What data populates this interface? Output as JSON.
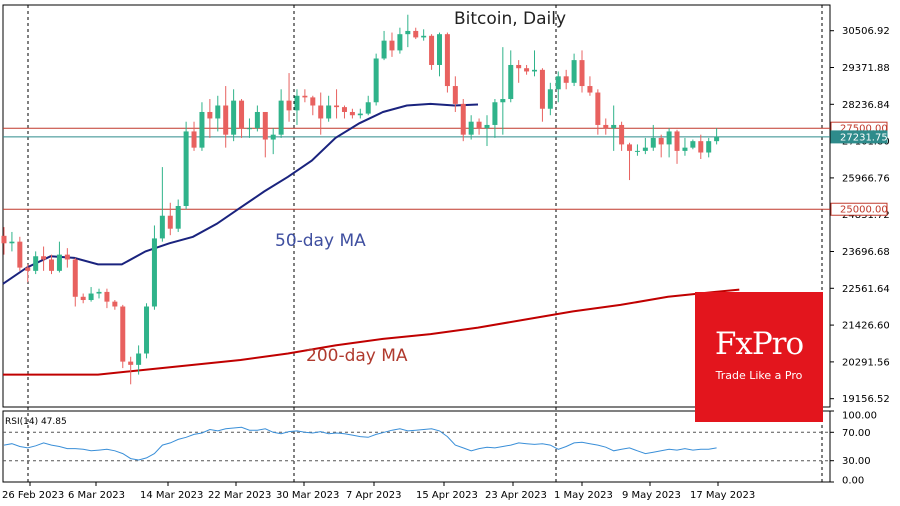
{
  "chart_data": [
    {
      "type": "candlestick",
      "title": "Bitcoin, Daily",
      "ylim": [
        18900,
        31300
      ],
      "yticks": [
        "30506.92",
        "29371.88",
        "28236.84",
        "27101.80",
        "25966.76",
        "24831.72",
        "23696.68",
        "22561.64",
        "21426.60",
        "20291.56",
        "19156.52"
      ],
      "horizontal_levels": [
        {
          "value": 27500,
          "label": "27500.00",
          "color": "#c0392b"
        },
        {
          "value": 25000,
          "label": "25000.00",
          "color": "#c0392b"
        },
        {
          "value": 27231.75,
          "label": "27231.75",
          "color": "#2e8b8b"
        }
      ],
      "x_labels": [
        "26 Feb 2023",
        "6 Mar 2023",
        "14 Mar 2023",
        "22 Mar 2023",
        "30 Mar 2023",
        "7 Apr 2023",
        "15 Apr 2023",
        "23 Apr 2023",
        "1 May 2023",
        "9 May 2023",
        "17 May 2023"
      ],
      "candles": [
        {
          "date": "2023-02-22",
          "o": 24180,
          "h": 24450,
          "l": 23600,
          "c": 23950
        },
        {
          "date": "2023-02-23",
          "o": 23950,
          "h": 24300,
          "l": 23700,
          "c": 24000
        },
        {
          "date": "2023-02-24",
          "o": 24000,
          "h": 24150,
          "l": 23100,
          "c": 23200
        },
        {
          "date": "2023-02-25",
          "o": 23200,
          "h": 23300,
          "l": 22750,
          "c": 23100
        },
        {
          "date": "2023-02-26",
          "o": 23100,
          "h": 23700,
          "l": 23000,
          "c": 23550
        },
        {
          "date": "2023-02-27",
          "o": 23550,
          "h": 23850,
          "l": 23100,
          "c": 23450
        },
        {
          "date": "2023-02-28",
          "o": 23450,
          "h": 23600,
          "l": 23000,
          "c": 23100
        },
        {
          "date": "2023-03-01",
          "o": 23100,
          "h": 24000,
          "l": 23050,
          "c": 23600
        },
        {
          "date": "2023-03-02",
          "o": 23600,
          "h": 23800,
          "l": 23200,
          "c": 23450
        },
        {
          "date": "2023-03-03",
          "o": 23450,
          "h": 23500,
          "l": 22000,
          "c": 22300
        },
        {
          "date": "2023-03-04",
          "o": 22300,
          "h": 22400,
          "l": 22100,
          "c": 22200
        },
        {
          "date": "2023-03-05",
          "o": 22200,
          "h": 22600,
          "l": 22150,
          "c": 22400
        },
        {
          "date": "2023-03-06",
          "o": 22400,
          "h": 22550,
          "l": 22250,
          "c": 22450
        },
        {
          "date": "2023-03-07",
          "o": 22450,
          "h": 22550,
          "l": 21950,
          "c": 22150
        },
        {
          "date": "2023-03-08",
          "o": 22150,
          "h": 22200,
          "l": 21900,
          "c": 22000
        },
        {
          "date": "2023-03-09",
          "o": 22000,
          "h": 22050,
          "l": 20100,
          "c": 20300
        },
        {
          "date": "2023-03-10",
          "o": 20300,
          "h": 20450,
          "l": 19600,
          "c": 20200
        },
        {
          "date": "2023-03-11",
          "o": 20200,
          "h": 20800,
          "l": 19900,
          "c": 20550
        },
        {
          "date": "2023-03-12",
          "o": 20550,
          "h": 22100,
          "l": 20400,
          "c": 22000
        },
        {
          "date": "2023-03-13",
          "o": 22000,
          "h": 24500,
          "l": 21900,
          "c": 24100
        },
        {
          "date": "2023-03-14",
          "o": 24100,
          "h": 26300,
          "l": 24000,
          "c": 24800
        },
        {
          "date": "2023-03-15",
          "o": 24800,
          "h": 25200,
          "l": 24200,
          "c": 24400
        },
        {
          "date": "2023-03-16",
          "o": 24400,
          "h": 25300,
          "l": 24300,
          "c": 25100
        },
        {
          "date": "2023-03-17",
          "o": 25100,
          "h": 27700,
          "l": 25000,
          "c": 27400
        },
        {
          "date": "2023-03-18",
          "o": 27400,
          "h": 27700,
          "l": 26800,
          "c": 26900
        },
        {
          "date": "2023-03-19",
          "o": 26900,
          "h": 28300,
          "l": 26800,
          "c": 28000
        },
        {
          "date": "2023-03-20",
          "o": 28000,
          "h": 28400,
          "l": 27200,
          "c": 27800
        },
        {
          "date": "2023-03-21",
          "o": 27800,
          "h": 28500,
          "l": 27400,
          "c": 28200
        },
        {
          "date": "2023-03-22",
          "o": 28200,
          "h": 28800,
          "l": 26900,
          "c": 27300
        },
        {
          "date": "2023-03-23",
          "o": 27300,
          "h": 28700,
          "l": 27100,
          "c": 28350
        },
        {
          "date": "2023-03-24",
          "o": 28350,
          "h": 28400,
          "l": 27200,
          "c": 27500
        },
        {
          "date": "2023-03-25",
          "o": 27500,
          "h": 27800,
          "l": 27200,
          "c": 27500
        },
        {
          "date": "2023-03-26",
          "o": 27500,
          "h": 28200,
          "l": 27400,
          "c": 28000
        },
        {
          "date": "2023-03-27",
          "o": 28000,
          "h": 28000,
          "l": 26600,
          "c": 27150
        },
        {
          "date": "2023-03-28",
          "o": 27150,
          "h": 27500,
          "l": 26700,
          "c": 27300
        },
        {
          "date": "2023-03-29",
          "o": 27300,
          "h": 28700,
          "l": 27200,
          "c": 28350
        },
        {
          "date": "2023-03-30",
          "o": 28350,
          "h": 29200,
          "l": 27700,
          "c": 28050
        },
        {
          "date": "2023-03-31",
          "o": 28050,
          "h": 28700,
          "l": 27600,
          "c": 28500
        },
        {
          "date": "2023-04-01",
          "o": 28500,
          "h": 28700,
          "l": 28300,
          "c": 28450
        },
        {
          "date": "2023-04-02",
          "o": 28450,
          "h": 28500,
          "l": 27900,
          "c": 28200
        },
        {
          "date": "2023-04-03",
          "o": 28200,
          "h": 28600,
          "l": 27300,
          "c": 27800
        },
        {
          "date": "2023-04-04",
          "o": 27800,
          "h": 28500,
          "l": 27700,
          "c": 28200
        },
        {
          "date": "2023-04-05",
          "o": 28200,
          "h": 28700,
          "l": 27800,
          "c": 28150
        },
        {
          "date": "2023-04-06",
          "o": 28150,
          "h": 28200,
          "l": 27800,
          "c": 28000
        },
        {
          "date": "2023-04-07",
          "o": 28000,
          "h": 28100,
          "l": 27800,
          "c": 27900
        },
        {
          "date": "2023-04-08",
          "o": 27900,
          "h": 28100,
          "l": 27800,
          "c": 27950
        },
        {
          "date": "2023-04-09",
          "o": 27950,
          "h": 28500,
          "l": 27900,
          "c": 28300
        },
        {
          "date": "2023-04-10",
          "o": 28300,
          "h": 29800,
          "l": 28200,
          "c": 29650
        },
        {
          "date": "2023-04-11",
          "o": 29650,
          "h": 30500,
          "l": 29600,
          "c": 30200
        },
        {
          "date": "2023-04-12",
          "o": 30200,
          "h": 30450,
          "l": 29700,
          "c": 29900
        },
        {
          "date": "2023-04-13",
          "o": 29900,
          "h": 30600,
          "l": 29800,
          "c": 30400
        },
        {
          "date": "2023-04-14",
          "o": 30400,
          "h": 31000,
          "l": 30000,
          "c": 30500
        },
        {
          "date": "2023-04-15",
          "o": 30500,
          "h": 30600,
          "l": 30250,
          "c": 30300
        },
        {
          "date": "2023-04-16",
          "o": 30300,
          "h": 30550,
          "l": 30200,
          "c": 30350
        },
        {
          "date": "2023-04-17",
          "o": 30350,
          "h": 30400,
          "l": 29300,
          "c": 29450
        },
        {
          "date": "2023-04-18",
          "o": 29450,
          "h": 30450,
          "l": 29100,
          "c": 30400
        },
        {
          "date": "2023-04-19",
          "o": 30400,
          "h": 30450,
          "l": 28600,
          "c": 28800
        },
        {
          "date": "2023-04-20",
          "o": 28800,
          "h": 29100,
          "l": 28000,
          "c": 28250
        },
        {
          "date": "2023-04-21",
          "o": 28250,
          "h": 28400,
          "l": 27100,
          "c": 27300
        },
        {
          "date": "2023-04-22",
          "o": 27300,
          "h": 27900,
          "l": 27150,
          "c": 27700
        },
        {
          "date": "2023-04-23",
          "o": 27700,
          "h": 27800,
          "l": 27300,
          "c": 27500
        },
        {
          "date": "2023-04-24",
          "o": 27500,
          "h": 27900,
          "l": 26950,
          "c": 27600
        },
        {
          "date": "2023-04-25",
          "o": 27600,
          "h": 28400,
          "l": 27200,
          "c": 28300
        },
        {
          "date": "2023-04-26",
          "o": 28300,
          "h": 30000,
          "l": 27300,
          "c": 28400
        },
        {
          "date": "2023-04-27",
          "o": 28400,
          "h": 29900,
          "l": 28300,
          "c": 29450
        },
        {
          "date": "2023-04-28",
          "o": 29450,
          "h": 29600,
          "l": 28900,
          "c": 29350
        },
        {
          "date": "2023-04-29",
          "o": 29350,
          "h": 29450,
          "l": 29150,
          "c": 29250
        },
        {
          "date": "2023-04-30",
          "o": 29250,
          "h": 29900,
          "l": 29100,
          "c": 29300
        },
        {
          "date": "2023-05-01",
          "o": 29300,
          "h": 29350,
          "l": 27700,
          "c": 28100
        },
        {
          "date": "2023-05-02",
          "o": 28100,
          "h": 28900,
          "l": 27900,
          "c": 28700
        },
        {
          "date": "2023-05-03",
          "o": 28700,
          "h": 29250,
          "l": 28300,
          "c": 29100
        },
        {
          "date": "2023-05-04",
          "o": 29100,
          "h": 29300,
          "l": 28700,
          "c": 28900
        },
        {
          "date": "2023-05-05",
          "o": 28900,
          "h": 29800,
          "l": 28800,
          "c": 29600
        },
        {
          "date": "2023-05-06",
          "o": 29600,
          "h": 29900,
          "l": 28600,
          "c": 28800
        },
        {
          "date": "2023-05-07",
          "o": 28800,
          "h": 29100,
          "l": 28500,
          "c": 28600
        },
        {
          "date": "2023-05-08",
          "o": 28600,
          "h": 28700,
          "l": 27300,
          "c": 27600
        },
        {
          "date": "2023-05-09",
          "o": 27600,
          "h": 27800,
          "l": 27300,
          "c": 27500
        },
        {
          "date": "2023-05-10",
          "o": 27500,
          "h": 28200,
          "l": 26800,
          "c": 27600
        },
        {
          "date": "2023-05-11",
          "o": 27600,
          "h": 27700,
          "l": 26800,
          "c": 27000
        },
        {
          "date": "2023-05-12",
          "o": 27000,
          "h": 27050,
          "l": 25900,
          "c": 26800
        },
        {
          "date": "2023-05-13",
          "o": 26800,
          "h": 27000,
          "l": 26650,
          "c": 26800
        },
        {
          "date": "2023-05-14",
          "o": 26800,
          "h": 27200,
          "l": 26700,
          "c": 26900
        },
        {
          "date": "2023-05-15",
          "o": 26900,
          "h": 27600,
          "l": 26800,
          "c": 27200
        },
        {
          "date": "2023-05-16",
          "o": 27200,
          "h": 27300,
          "l": 26600,
          "c": 27000
        },
        {
          "date": "2023-05-17",
          "o": 27000,
          "h": 27500,
          "l": 26600,
          "c": 27400
        },
        {
          "date": "2023-05-18",
          "o": 27400,
          "h": 27450,
          "l": 26400,
          "c": 26800
        },
        {
          "date": "2023-05-19",
          "o": 26800,
          "h": 27200,
          "l": 26650,
          "c": 26900
        },
        {
          "date": "2023-05-20",
          "o": 26900,
          "h": 27150,
          "l": 26850,
          "c": 27100
        },
        {
          "date": "2023-05-21",
          "o": 27100,
          "h": 27300,
          "l": 26550,
          "c": 26750
        },
        {
          "date": "2023-05-22",
          "o": 26750,
          "h": 27200,
          "l": 26600,
          "c": 27100
        },
        {
          "date": "2023-05-23",
          "o": 27100,
          "h": 27500,
          "l": 27000,
          "c": 27231.75
        }
      ],
      "series": [
        {
          "name": "50-day MA",
          "color": "#1a237e",
          "values": [
            [
              0,
              22700
            ],
            [
              5,
              23200
            ],
            [
              10,
              23550
            ],
            [
              15,
              23500
            ],
            [
              20,
              23300
            ],
            [
              25,
              23300
            ],
            [
              30,
              23700
            ],
            [
              35,
              23950
            ],
            [
              40,
              24150
            ],
            [
              45,
              24550
            ],
            [
              50,
              25050
            ],
            [
              55,
              25550
            ],
            [
              60,
              26000
            ],
            [
              65,
              26500
            ],
            [
              70,
              27200
            ],
            [
              75,
              27650
            ],
            [
              80,
              28000
            ],
            [
              85,
              28200
            ],
            [
              90,
              28250
            ],
            [
              95,
              28200
            ],
            [
              100,
              28230
            ]
          ]
        },
        {
          "name": "200-day MA",
          "color": "#c00000",
          "values": [
            [
              0,
              19900
            ],
            [
              10,
              19900
            ],
            [
              20,
              19900
            ],
            [
              30,
              20050
            ],
            [
              40,
              20200
            ],
            [
              50,
              20350
            ],
            [
              60,
              20550
            ],
            [
              70,
              20800
            ],
            [
              80,
              21000
            ],
            [
              90,
              21150
            ],
            [
              100,
              21350
            ],
            [
              110,
              21600
            ],
            [
              120,
              21850
            ],
            [
              130,
              22050
            ],
            [
              140,
              22300
            ],
            [
              150,
              22450
            ],
            [
              155,
              22520
            ]
          ]
        }
      ]
    },
    {
      "type": "line",
      "title": "RSI(14) 47.85",
      "ylim": [
        0,
        100
      ],
      "yticks": [
        "100.00",
        "70.00",
        "30.00",
        "0.00"
      ],
      "series": [
        {
          "name": "RSI(14)",
          "color": "#3a8fd8",
          "values": [
            52,
            54,
            50,
            48,
            51,
            55,
            52,
            50,
            47,
            47,
            46,
            44,
            45,
            46,
            44,
            40,
            33,
            31,
            34,
            40,
            52,
            55,
            60,
            63,
            67,
            69,
            74,
            72,
            75,
            76,
            77,
            73,
            73,
            75,
            70,
            68,
            71,
            72,
            70,
            69,
            71,
            68,
            69,
            68,
            66,
            64,
            63,
            67,
            70,
            73,
            75,
            72,
            73,
            74,
            75,
            72,
            64,
            52,
            48,
            44,
            47,
            49,
            48,
            50,
            52,
            55,
            54,
            53,
            54,
            52,
            46,
            50,
            55,
            56,
            54,
            52,
            49,
            44,
            46,
            48,
            44,
            40,
            42,
            44,
            46,
            45,
            47,
            45,
            46,
            46,
            48
          ]
        }
      ]
    }
  ],
  "annotations": {
    "ma50_label": "50-day MA",
    "ma200_label": "200-day MA"
  },
  "colors": {
    "bull": "#2fb38a",
    "bear": "#e8615f",
    "ma50": "#1a237e",
    "ma200": "#c00000",
    "level_red": "#c0392b",
    "current": "#2e8b8b",
    "ma50_text": "#3f4fa0",
    "ma200_text": "#b03a2e"
  },
  "logo": {
    "brand": "FxPro",
    "tagline": "Trade Like a Pro",
    "color": "#e3151d"
  }
}
